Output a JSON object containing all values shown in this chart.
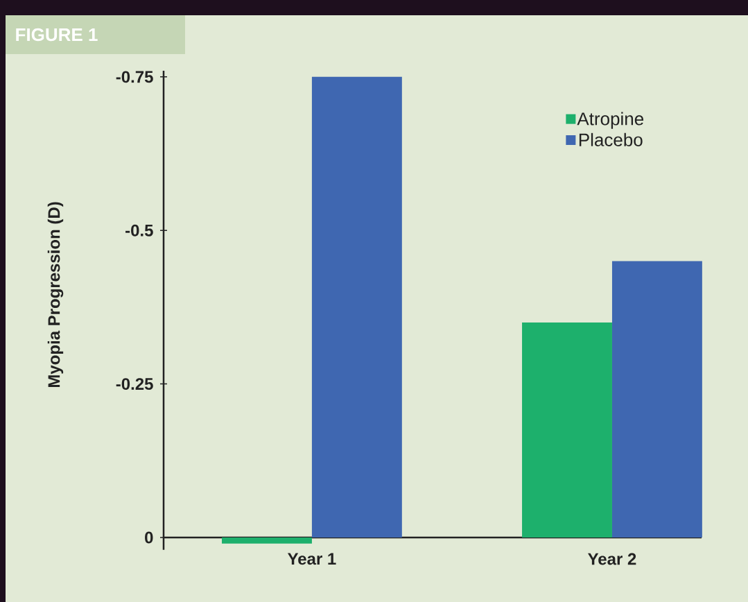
{
  "chart_data": {
    "type": "bar",
    "title": "FIGURE 1",
    "ylabel": "Myopia Progression (D)",
    "categories": [
      "Year 1",
      "Year 2"
    ],
    "series": [
      {
        "name": "Atropine",
        "color": "#1db06c",
        "values": [
          0.01,
          -0.35
        ]
      },
      {
        "name": "Placebo",
        "color": "#3f67b1",
        "values": [
          -0.75,
          -0.45
        ]
      }
    ],
    "ylim": [
      0.02,
      -0.76
    ],
    "yticks": [
      0,
      -0.25,
      -0.5,
      -0.75
    ],
    "legend": "top right",
    "grid": false
  }
}
